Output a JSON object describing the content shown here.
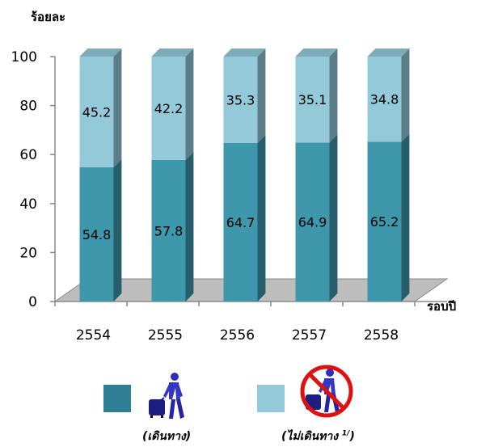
{
  "chart_data": {
    "type": "bar",
    "stacked": true,
    "three_d": true,
    "title": "",
    "ylabel": "ร้อยละ",
    "xlabel": "รอบปี",
    "ylim": [
      0,
      100
    ],
    "yticks": [
      0,
      20,
      40,
      60,
      80,
      100
    ],
    "categories": [
      "2554",
      "2555",
      "2556",
      "2557",
      "2558"
    ],
    "series": [
      {
        "key": "travel",
        "values": [
          54.8,
          57.8,
          64.7,
          64.9,
          65.2
        ],
        "color": "#3f97ac"
      },
      {
        "key": "no_travel",
        "values": [
          45.2,
          42.2,
          35.3,
          35.1,
          34.8
        ],
        "color": "#93c9d9"
      }
    ],
    "grid": false,
    "legend": {
      "position": "bottom",
      "items": [
        {
          "label": "(เดินทาง)",
          "color": "#2e7f95",
          "icon": "traveler-icon"
        },
        {
          "label": "(ไม่เดินทาง",
          "footnote": "1/",
          "close": ")",
          "color": "#93c9d9",
          "icon": "no-travel-icon"
        }
      ]
    }
  }
}
